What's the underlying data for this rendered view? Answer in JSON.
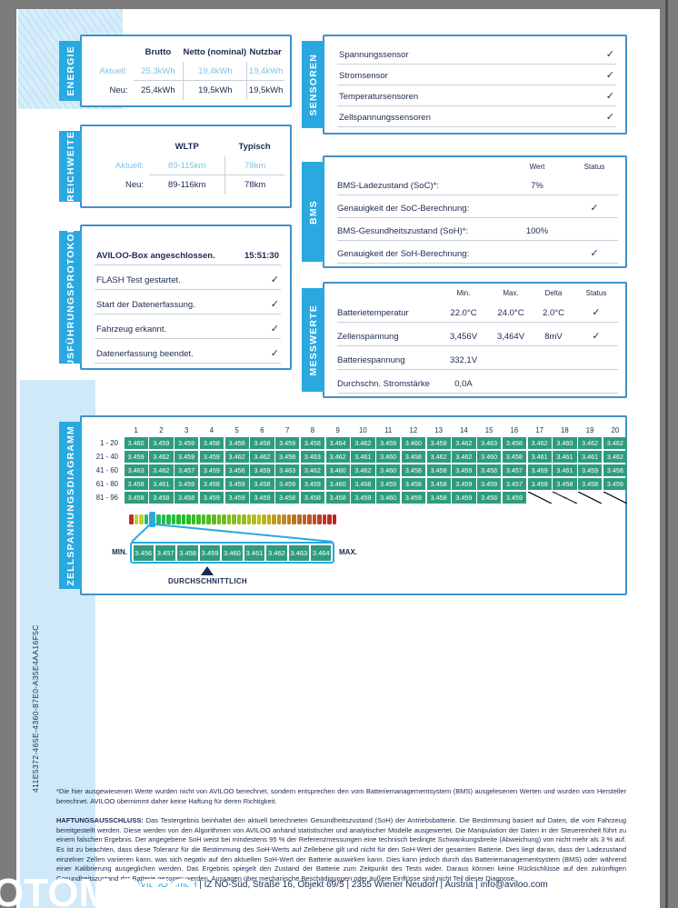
{
  "theme": {
    "accent": "#2aa9e0",
    "navy": "#1b2a52",
    "light_blue": "#7fc4e8",
    "cell_green": "#2f9c7d",
    "card_border": "#4191c9"
  },
  "page": {
    "watermark": "OTOMOTO",
    "document_id": "411E5372-465E-4360-87E0-A35E4AA16F5C"
  },
  "energie": {
    "label": "ENERGIE",
    "columns": [
      "Brutto",
      "Netto (nominal)",
      "Nutzbar"
    ],
    "rows": [
      {
        "label": "Aktuell:",
        "values": [
          "25,3kWh",
          "19,4kWh",
          "19,4kWh"
        ],
        "highlight": true
      },
      {
        "label": "Neu:",
        "values": [
          "25,4kWh",
          "19,5kWh",
          "19,5kWh"
        ],
        "highlight": false
      }
    ]
  },
  "reichweite": {
    "label": "REICHWEITE",
    "columns": [
      "WLTP",
      "Typisch"
    ],
    "rows": [
      {
        "label": "Aktuell:",
        "values": [
          "89-115km",
          "78km"
        ],
        "highlight": true
      },
      {
        "label": "Neu:",
        "values": [
          "89-116km",
          "78km"
        ],
        "highlight": false
      }
    ]
  },
  "ausfuehrungsprotokoll": {
    "label": "AUSFÜHRUNGSPROTOKOLL",
    "rows": [
      {
        "text": "AVILOO-Box angeschlossen.",
        "value": "15:51:30"
      },
      {
        "text": "FLASH Test gestartet.",
        "check": true
      },
      {
        "text": "Start der Datenerfassung.",
        "check": true
      },
      {
        "text": "Fahrzeug erkannt.",
        "check": true
      },
      {
        "text": "Datenerfassung beendet.",
        "check": true
      }
    ]
  },
  "sensoren": {
    "label": "SENSOREN",
    "rows": [
      {
        "text": "Spannungssensor",
        "check": true
      },
      {
        "text": "Stromsensor",
        "check": true
      },
      {
        "text": "Temperatursensoren",
        "check": true
      },
      {
        "text": "Zellspannungssensoren",
        "check": true
      }
    ]
  },
  "bms": {
    "label": "BMS",
    "headers": [
      "Wert",
      "Status"
    ],
    "rows": [
      {
        "text": "BMS-Ladezustand (SoC)*:",
        "wert": "7%",
        "check": false
      },
      {
        "text": "Genauigkeit der SoC-Berechnung:",
        "wert": "",
        "check": true
      },
      {
        "text": "BMS-Gesundheitszustand (SoH)*:",
        "wert": "100%",
        "check": false
      },
      {
        "text": "Genauigkeit der SoH-Berechnung:",
        "wert": "",
        "check": true
      }
    ]
  },
  "messwerte": {
    "label": "MESSWERTE",
    "headers": [
      "Min.",
      "Max.",
      "Delta",
      "Status"
    ],
    "rows": [
      {
        "text": "Batterietemperatur",
        "min": "22.0°C",
        "max": "24.0°C",
        "delta": "2.0°C",
        "check": true
      },
      {
        "text": "Zellenspannung",
        "min": "3,456V",
        "max": "3,464V",
        "delta": "8mV",
        "check": true
      },
      {
        "text": "Batteriespannung",
        "min": "332,1V",
        "max": "",
        "delta": "",
        "check": false
      },
      {
        "text": "Durchschn. Stromstärke",
        "min": "0,0A",
        "max": "",
        "delta": "",
        "check": false
      }
    ]
  },
  "zell": {
    "label": "ZELLSPANNUNGSDIAGRAMM",
    "col_headers": [
      "1",
      "2",
      "3",
      "4",
      "5",
      "6",
      "7",
      "8",
      "9",
      "10",
      "11",
      "12",
      "13",
      "14",
      "15",
      "16",
      "17",
      "18",
      "19",
      "20"
    ],
    "rows": [
      {
        "label": "1 - 20",
        "values": [
          "3.460",
          "3.459",
          "3.459",
          "3.458",
          "3.458",
          "3.458",
          "3.459",
          "3.458",
          "3.464",
          "3.462",
          "3.459",
          "3.460",
          "3.458",
          "3.462",
          "3.463",
          "3.458",
          "3.462",
          "3.460",
          "3.462",
          "3.462"
        ]
      },
      {
        "label": "21 - 40",
        "values": [
          "3.459",
          "3.462",
          "3.459",
          "3.459",
          "3.462",
          "3.462",
          "3.458",
          "3.463",
          "3.462",
          "3.461",
          "3.460",
          "3.458",
          "3.462",
          "3.462",
          "3.460",
          "3.458",
          "3.461",
          "3.461",
          "3.461",
          "3.462"
        ]
      },
      {
        "label": "41 - 60",
        "values": [
          "3.463",
          "3.462",
          "3.457",
          "3.459",
          "3.456",
          "3.459",
          "3.463",
          "3.462",
          "3.460",
          "3.462",
          "3.460",
          "3.458",
          "3.458",
          "3.459",
          "3.458",
          "3.457",
          "3.459",
          "3.461",
          "3.459",
          "3.458"
        ]
      },
      {
        "label": "61 - 80",
        "values": [
          "3.458",
          "3.461",
          "3.459",
          "3.458",
          "3.459",
          "3.458",
          "3.459",
          "3.459",
          "3.460",
          "3.458",
          "3.459",
          "3.458",
          "3.458",
          "3.459",
          "3.459",
          "3.457",
          "3.459",
          "3.458",
          "3.458",
          "3.459"
        ]
      },
      {
        "label": "81 - 96",
        "values": [
          "3.458",
          "3.458",
          "3.458",
          "3.459",
          "3.459",
          "3.459",
          "3.458",
          "3.458",
          "3.458",
          "3.459",
          "3.460",
          "3.459",
          "3.458",
          "3.459",
          "3.458",
          "3.459"
        ]
      }
    ],
    "colorbar": {
      "segments": 40,
      "marker_index": 4
    },
    "scale": {
      "min_label": "MIN.",
      "max_label": "MAX.",
      "values": [
        "3.456",
        "3.457",
        "3.458",
        "3.459",
        "3.460",
        "3.461",
        "3.462",
        "3.463",
        "3.464"
      ],
      "avg_index": 3,
      "avg_label": "DURCHSCHNITTLICH"
    }
  },
  "footnote": "*Die hier ausgewiesenen Werte wurden nicht von AVILOO berechnet, sondern entsprechen den vom Batteriemanagementsystem (BMS) ausgelesenen Werten und wurden vom Hersteller berechnet. AVILOO übernimmt daher keine Haftung für deren Richtigkeit.",
  "disclaimer": {
    "title": "HAFTUNGSAUSSCHLUSS:",
    "text": " Das Testergebnis beinhaltet den aktuell berechneten Gesundheitszustand (SoH) der Antriebsbatterie. Die Bestimmung basiert auf Daten, die vom Fahrzeug bereitgestellt werden. Diese werden von den Algorithmen von AVILOO anhand statistischer und analytischer Modelle ausgewertet. Die Manipulation der Daten in der Steuereinheit führt zu einem falschen Ergebnis. Der angegebene SoH weist bei mindestens 95 % der Referenzmessungen eine technisch bedingte Schwankungsbreite (Abweichung) von nicht mehr als 3 % auf. Es ist zu beachten, dass diese Toleranz für die Bestimmung des SoH-Werts auf Zellebene gilt und nicht für den SoH-Wert der gesamten Batterie. Dies liegt daran, dass der Ladezustand einzelner Zellen variieren kann, was sich negativ auf den aktuellen SoH-Wert der Batterie auswirken kann. Dies kann jedoch durch das Batteriemanagementsystem (BMS) oder während einer Kalibrierung ausgeglichen werden. Das Ergebnis spiegelt den Zustand der Batterie zum Zeitpunkt des Tests wider. Daraus können keine Rückschlüsse auf den zukünftigen Gesundheitszustand der Batterie gezogen werden. Aussagen über mechanische Beschädigungen oder äußere Einflüsse sind nicht Teil dieser Diagnose."
  },
  "footer": {
    "company": "AVILOO GmbH",
    "details": " | IZ NÖ-Süd, Straße 16, Objekt 69/5 | 2355 Wiener Neudorf | Austria | info@aviloo.com"
  }
}
